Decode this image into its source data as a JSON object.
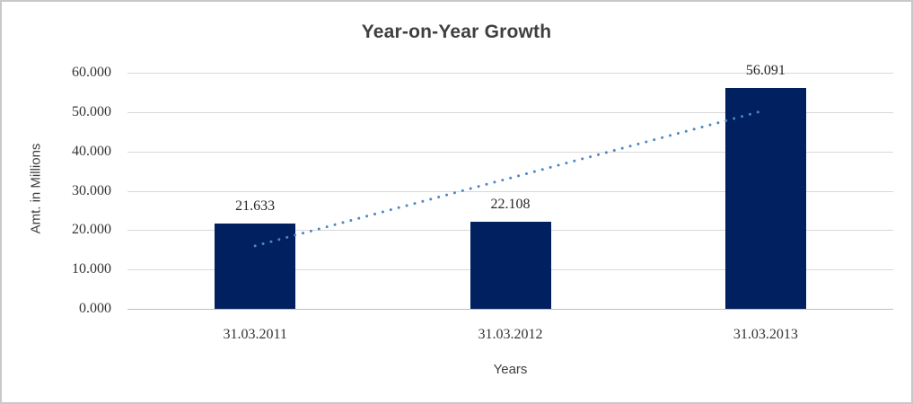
{
  "window": {
    "background_color": "#ffffff",
    "border_color": "#c9c9c9"
  },
  "chart_data": {
    "type": "bar",
    "title": "Year-on-Year Growth",
    "xlabel": "Years",
    "ylabel": "Amt. in Millions",
    "categories": [
      "31.03.2011",
      "31.03.2012",
      "31.03.2013"
    ],
    "values": [
      21.633,
      22.108,
      56.091
    ],
    "value_labels": [
      "21.633",
      "22.108",
      "56.091"
    ],
    "ylim": [
      0,
      60
    ],
    "yticks": [
      {
        "value": 0,
        "label": "0.000"
      },
      {
        "value": 10,
        "label": "10.000"
      },
      {
        "value": 20,
        "label": "20.000"
      },
      {
        "value": 30,
        "label": "30.000"
      },
      {
        "value": 40,
        "label": "40.000"
      },
      {
        "value": 50,
        "label": "50.000"
      },
      {
        "value": 60,
        "label": "60.000"
      }
    ],
    "grid": true,
    "legend": false,
    "bar_color": "#002060",
    "gridline_color": "#d9d9d9",
    "title_color": "#3f3f3f",
    "axis_text_color": "#333333",
    "trendline": {
      "type": "linear",
      "style": "dotted",
      "color": "#4E86C4",
      "start_value": 16.0,
      "end_value": 50.5
    }
  }
}
